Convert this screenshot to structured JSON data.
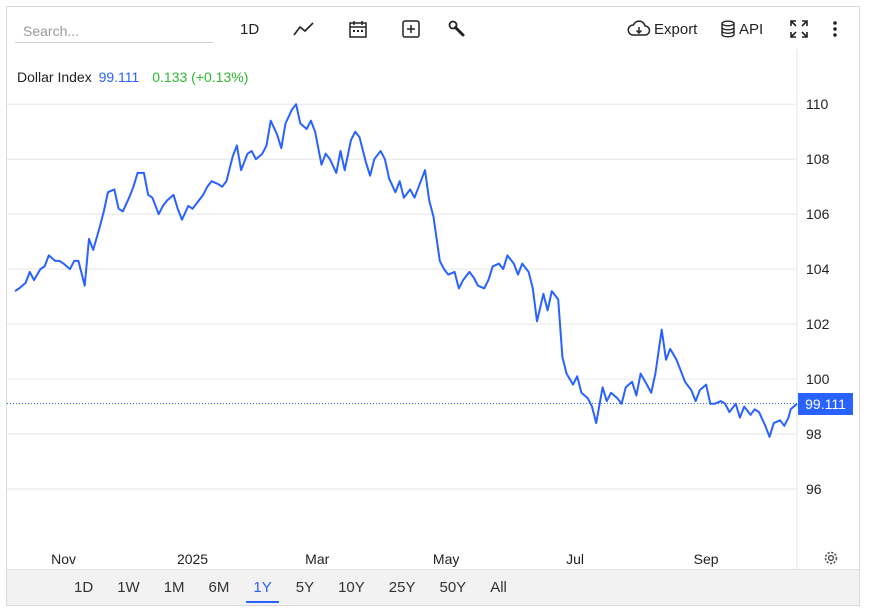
{
  "toolbar": {
    "search_placeholder": "Search...",
    "interval_label": "1D",
    "export_label": "Export",
    "api_label": "API"
  },
  "legend": {
    "name": "Dollar Index",
    "value": "99.111",
    "change": "0.133 (+0.13%)"
  },
  "price_tag": "99.111",
  "colors": {
    "line": "#2962ff",
    "change_up": "#2eb82e",
    "grid": "#e6e6e6"
  },
  "ranges": [
    "1D",
    "1W",
    "1M",
    "6M",
    "1Y",
    "5Y",
    "10Y",
    "25Y",
    "50Y",
    "All"
  ],
  "active_range": "1Y",
  "chart_data": {
    "type": "line",
    "title": "Dollar Index",
    "xlabel": "",
    "ylabel": "",
    "ylim": [
      94,
      111.5
    ],
    "yticks": [
      96,
      98,
      100,
      102,
      104,
      106,
      108,
      110
    ],
    "xtick_labels": [
      "Nov",
      "2025",
      "Mar",
      "May",
      "Jul",
      "Sep"
    ],
    "xtick_dates": [
      "2024-11-01",
      "2025-01-01",
      "2025-03-01",
      "2025-05-01",
      "2025-07-01",
      "2025-09-01"
    ],
    "x_range": [
      "2024-10-09",
      "2025-10-14"
    ],
    "last_value": 99.111,
    "grid": true,
    "series": [
      {
        "name": "Dollar Index",
        "points": [
          [
            "2024-10-09",
            103.2
          ],
          [
            "2024-10-11",
            103.3
          ],
          [
            "2024-10-14",
            103.5
          ],
          [
            "2024-10-16",
            103.9
          ],
          [
            "2024-10-18",
            103.6
          ],
          [
            "2024-10-21",
            104.0
          ],
          [
            "2024-10-23",
            104.1
          ],
          [
            "2024-10-25",
            104.5
          ],
          [
            "2024-10-28",
            104.3
          ],
          [
            "2024-10-30",
            104.3
          ],
          [
            "2024-11-01",
            104.2
          ],
          [
            "2024-11-04",
            104.0
          ],
          [
            "2024-11-06",
            104.3
          ],
          [
            "2024-11-08",
            104.3
          ],
          [
            "2024-11-11",
            103.4
          ],
          [
            "2024-11-13",
            105.1
          ],
          [
            "2024-11-15",
            104.7
          ],
          [
            "2024-11-18",
            105.5
          ],
          [
            "2024-11-20",
            106.1
          ],
          [
            "2024-11-22",
            106.8
          ],
          [
            "2024-11-25",
            106.9
          ],
          [
            "2024-11-27",
            106.2
          ],
          [
            "2024-11-29",
            106.1
          ],
          [
            "2024-12-02",
            106.6
          ],
          [
            "2024-12-04",
            107.0
          ],
          [
            "2024-12-06",
            107.5
          ],
          [
            "2024-12-09",
            107.5
          ],
          [
            "2024-12-11",
            106.7
          ],
          [
            "2024-12-13",
            106.6
          ],
          [
            "2024-12-16",
            106.0
          ],
          [
            "2024-12-18",
            106.3
          ],
          [
            "2024-12-20",
            106.5
          ],
          [
            "2024-12-23",
            106.7
          ],
          [
            "2024-12-25",
            106.2
          ],
          [
            "2024-12-27",
            105.8
          ],
          [
            "2024-12-30",
            106.3
          ],
          [
            "2025-01-01",
            106.2
          ],
          [
            "2025-01-03",
            106.4
          ],
          [
            "2025-01-06",
            106.7
          ],
          [
            "2025-01-08",
            107.0
          ],
          [
            "2025-01-10",
            107.2
          ],
          [
            "2025-01-13",
            107.1
          ],
          [
            "2025-01-15",
            107.0
          ],
          [
            "2025-01-17",
            107.2
          ],
          [
            "2025-01-20",
            108.1
          ],
          [
            "2025-01-22",
            108.5
          ],
          [
            "2025-01-24",
            107.6
          ],
          [
            "2025-01-27",
            108.2
          ],
          [
            "2025-01-29",
            108.3
          ],
          [
            "2025-01-31",
            108.0
          ],
          [
            "2025-02-03",
            108.2
          ],
          [
            "2025-02-05",
            108.5
          ],
          [
            "2025-02-07",
            109.4
          ],
          [
            "2025-02-10",
            108.9
          ],
          [
            "2025-02-12",
            108.4
          ],
          [
            "2025-02-14",
            109.3
          ],
          [
            "2025-02-17",
            109.8
          ],
          [
            "2025-02-19",
            110.0
          ],
          [
            "2025-02-21",
            109.3
          ],
          [
            "2025-02-24",
            109.1
          ],
          [
            "2025-02-26",
            109.4
          ],
          [
            "2025-02-28",
            109.0
          ],
          [
            "2025-03-03",
            107.8
          ],
          [
            "2025-03-05",
            108.2
          ],
          [
            "2025-03-07",
            108.0
          ],
          [
            "2025-03-10",
            107.5
          ],
          [
            "2025-03-12",
            108.3
          ],
          [
            "2025-03-14",
            107.6
          ],
          [
            "2025-03-17",
            108.7
          ],
          [
            "2025-03-19",
            109.0
          ],
          [
            "2025-03-21",
            108.8
          ],
          [
            "2025-03-24",
            107.9
          ],
          [
            "2025-03-26",
            107.4
          ],
          [
            "2025-03-28",
            108.0
          ],
          [
            "2025-03-31",
            108.3
          ],
          [
            "2025-04-02",
            108.0
          ],
          [
            "2025-04-04",
            107.3
          ],
          [
            "2025-04-07",
            106.8
          ],
          [
            "2025-04-09",
            107.2
          ],
          [
            "2025-04-11",
            106.6
          ],
          [
            "2025-04-14",
            106.9
          ],
          [
            "2025-04-16",
            106.6
          ],
          [
            "2025-04-18",
            107.0
          ],
          [
            "2025-04-21",
            107.6
          ],
          [
            "2025-04-23",
            106.5
          ],
          [
            "2025-04-25",
            105.9
          ],
          [
            "2025-04-28",
            104.3
          ],
          [
            "2025-04-30",
            104.0
          ],
          [
            "2025-05-02",
            103.8
          ],
          [
            "2025-05-05",
            103.9
          ],
          [
            "2025-05-07",
            103.3
          ],
          [
            "2025-05-09",
            103.6
          ],
          [
            "2025-05-12",
            103.9
          ],
          [
            "2025-05-14",
            103.7
          ],
          [
            "2025-05-16",
            103.4
          ],
          [
            "2025-05-19",
            103.3
          ],
          [
            "2025-05-21",
            103.6
          ],
          [
            "2025-05-23",
            104.1
          ],
          [
            "2025-05-26",
            104.2
          ],
          [
            "2025-05-28",
            104.0
          ],
          [
            "2025-05-30",
            104.5
          ],
          [
            "2025-06-02",
            104.2
          ],
          [
            "2025-06-04",
            103.8
          ],
          [
            "2025-06-06",
            104.2
          ],
          [
            "2025-06-09",
            103.9
          ],
          [
            "2025-06-11",
            103.3
          ],
          [
            "2025-06-13",
            102.1
          ],
          [
            "2025-06-16",
            103.1
          ],
          [
            "2025-06-18",
            102.5
          ],
          [
            "2025-06-20",
            103.2
          ],
          [
            "2025-06-23",
            102.9
          ],
          [
            "2025-06-25",
            100.8
          ],
          [
            "2025-06-27",
            100.2
          ],
          [
            "2025-06-30",
            99.8
          ],
          [
            "2025-07-02",
            100.1
          ],
          [
            "2025-07-04",
            99.5
          ],
          [
            "2025-07-07",
            99.3
          ],
          [
            "2025-07-09",
            99.0
          ],
          [
            "2025-07-11",
            98.4
          ],
          [
            "2025-07-14",
            99.7
          ],
          [
            "2025-07-16",
            99.2
          ],
          [
            "2025-07-18",
            99.5
          ],
          [
            "2025-07-21",
            99.3
          ],
          [
            "2025-07-23",
            99.1
          ],
          [
            "2025-07-25",
            99.7
          ],
          [
            "2025-07-28",
            99.9
          ],
          [
            "2025-07-30",
            99.4
          ],
          [
            "2025-08-01",
            100.2
          ],
          [
            "2025-08-04",
            99.8
          ],
          [
            "2025-08-06",
            99.5
          ],
          [
            "2025-08-08",
            100.2
          ],
          [
            "2025-08-11",
            101.8
          ],
          [
            "2025-08-13",
            100.7
          ],
          [
            "2025-08-15",
            101.1
          ],
          [
            "2025-08-18",
            100.7
          ],
          [
            "2025-08-20",
            100.3
          ],
          [
            "2025-08-22",
            99.9
          ],
          [
            "2025-08-25",
            99.6
          ],
          [
            "2025-08-27",
            99.2
          ],
          [
            "2025-08-29",
            99.6
          ],
          [
            "2025-09-01",
            99.8
          ],
          [
            "2025-09-03",
            99.1
          ],
          [
            "2025-09-05",
            99.1
          ],
          [
            "2025-09-08",
            99.2
          ],
          [
            "2025-09-10",
            99.1
          ],
          [
            "2025-09-12",
            98.8
          ],
          [
            "2025-09-15",
            99.1
          ],
          [
            "2025-09-17",
            98.6
          ],
          [
            "2025-09-19",
            99.0
          ],
          [
            "2025-09-22",
            98.7
          ],
          [
            "2025-09-24",
            98.9
          ],
          [
            "2025-09-26",
            98.8
          ],
          [
            "2025-09-29",
            98.3
          ],
          [
            "2025-10-01",
            97.9
          ],
          [
            "2025-10-03",
            98.4
          ],
          [
            "2025-10-06",
            98.5
          ],
          [
            "2025-10-08",
            98.3
          ],
          [
            "2025-10-10",
            98.6
          ],
          [
            "2025-10-11",
            98.9
          ],
          [
            "2025-10-14",
            99.1
          ]
        ]
      }
    ]
  }
}
